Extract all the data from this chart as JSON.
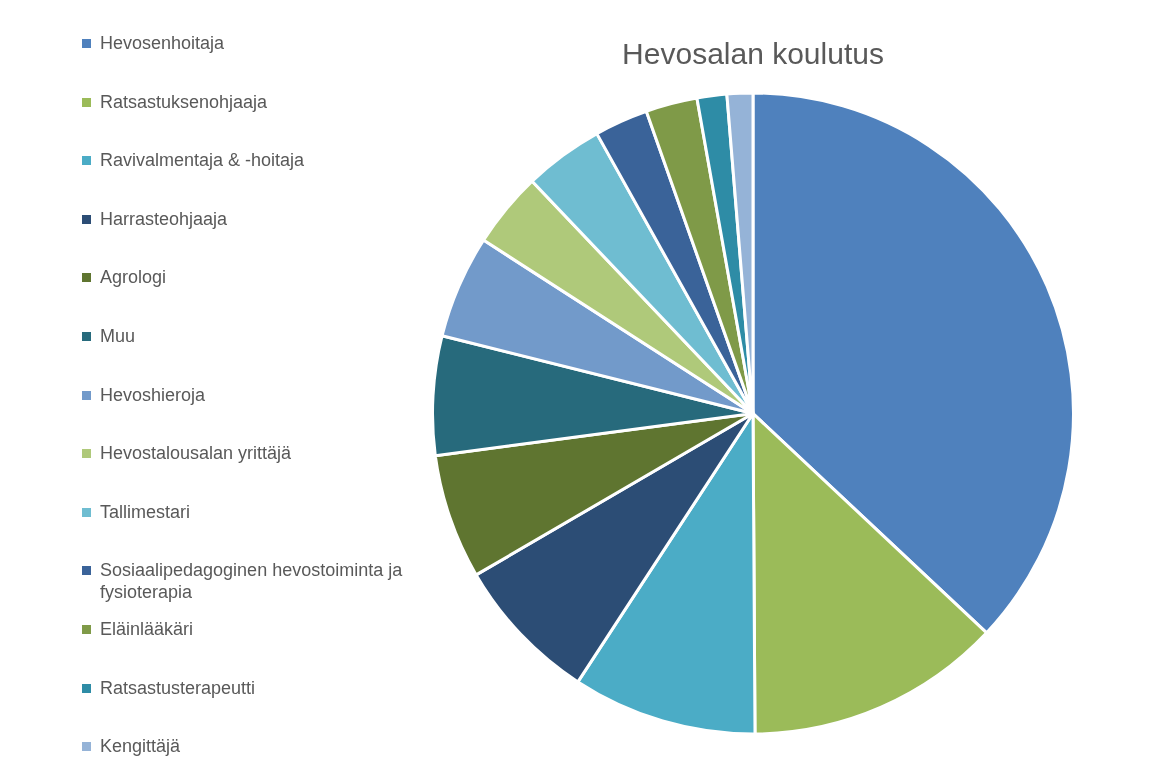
{
  "chart_data": {
    "type": "pie",
    "title": "Hevosalan koulutus",
    "categories": [
      "Hevosenhoitaja",
      "Ratsastuksenohjaaja",
      "Ravivalmentaja & -hoitaja",
      "Harrasteohjaaja",
      "Agrologi",
      "Muu",
      "Hevoshieroja",
      "Hevostalousalan yrittäjä",
      "Tallimestari",
      "Sosiaalipedagoginen hevostoiminta ja fysioterapia",
      "Eläinlääkäri",
      "Ratsastusterapeutti",
      "Kengittäjä"
    ],
    "values": [
      37.0,
      12.9,
      9.3,
      7.4,
      6.3,
      6.0,
      5.2,
      3.8,
      4.0,
      2.7,
      2.6,
      1.5,
      1.3
    ],
    "colors": [
      "#4f81bd",
      "#9bbb59",
      "#4bacc6",
      "#2c4d75",
      "#5f7530",
      "#276a7c",
      "#729aca",
      "#afc97a",
      "#6fbdd1",
      "#3a6399",
      "#7f9a48",
      "#2e8ca6",
      "#95b3d7"
    ],
    "legend": "left"
  }
}
